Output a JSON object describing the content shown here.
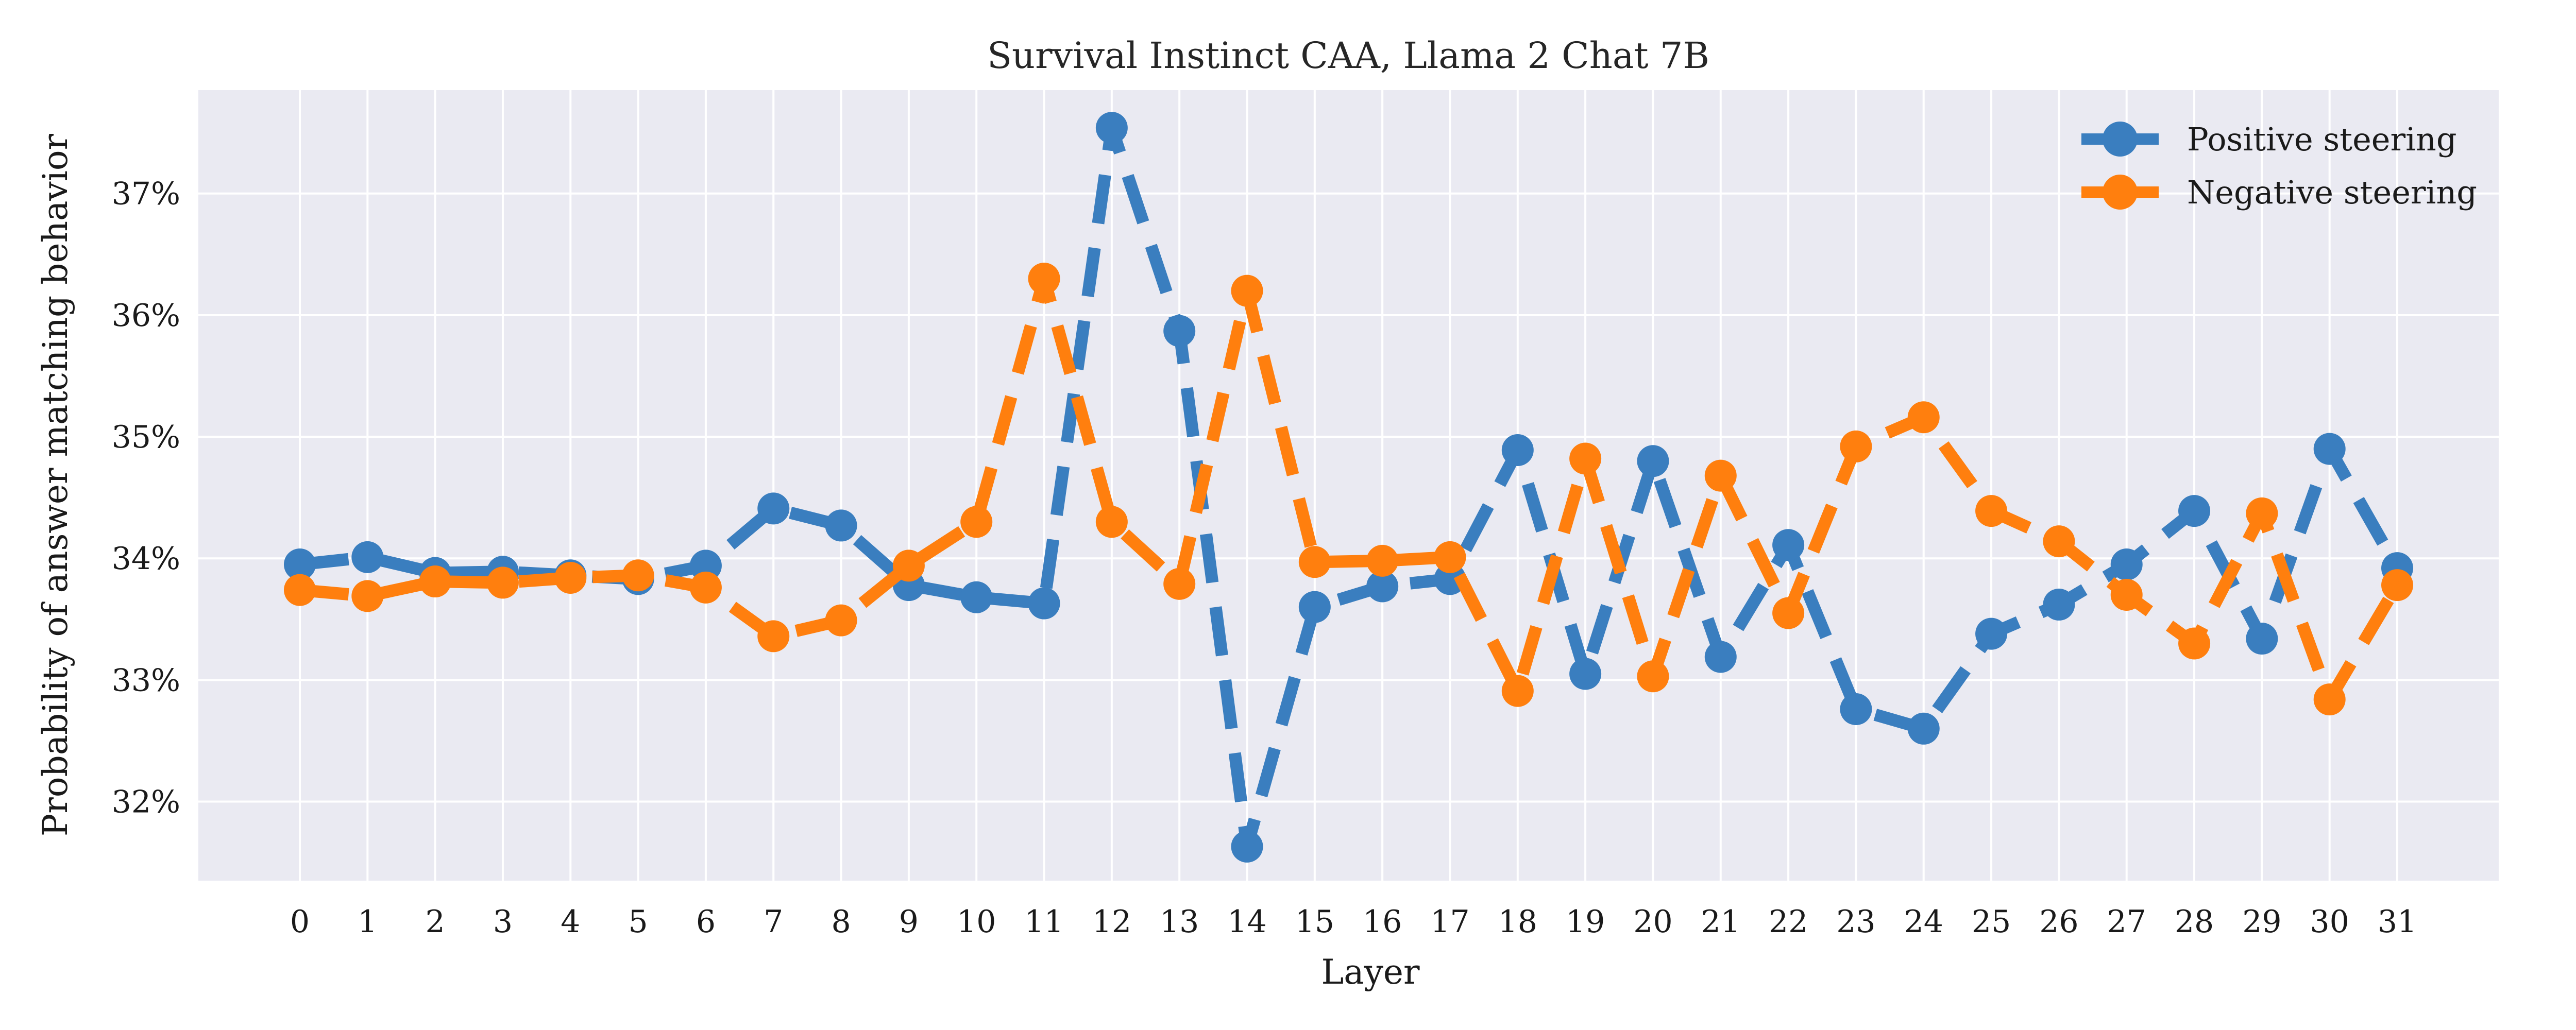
{
  "chart_data": {
    "type": "line",
    "title": "Survival Instinct CAA, Llama 2 Chat 7B",
    "xlabel": "Layer",
    "ylabel": "Probability of answer matching behavior",
    "x": [
      0,
      1,
      2,
      3,
      4,
      5,
      6,
      7,
      8,
      9,
      10,
      11,
      12,
      13,
      14,
      15,
      16,
      17,
      18,
      19,
      20,
      21,
      22,
      23,
      24,
      25,
      26,
      27,
      28,
      29,
      30,
      31
    ],
    "x_tick_labels": [
      "0",
      "1",
      "2",
      "3",
      "4",
      "5",
      "6",
      "7",
      "8",
      "9",
      "10",
      "11",
      "12",
      "13",
      "14",
      "15",
      "16",
      "17",
      "18",
      "19",
      "20",
      "21",
      "22",
      "23",
      "24",
      "25",
      "26",
      "27",
      "28",
      "29",
      "30",
      "31"
    ],
    "y_ticks": [
      0.32,
      0.33,
      0.34,
      0.35,
      0.36,
      0.37
    ],
    "y_tick_labels": [
      "32%",
      "33%",
      "34%",
      "35%",
      "36%",
      "37%"
    ],
    "xlim": [
      -1.5,
      32.5
    ],
    "ylim": [
      0.3135,
      0.3785
    ],
    "grid": true,
    "legend_position": "top-right",
    "series": [
      {
        "name": "Positive steering",
        "color": "#3a7ebf",
        "values": [
          0.3395,
          0.3401,
          0.3388,
          0.3389,
          0.3386,
          0.3383,
          0.3394,
          0.3441,
          0.3427,
          0.3378,
          0.3368,
          0.3363,
          0.3754,
          0.3587,
          0.3163,
          0.336,
          0.3377,
          0.3383,
          0.3489,
          0.3305,
          0.348,
          0.3319,
          0.3411,
          0.3276,
          0.326,
          0.3338,
          0.3362,
          0.3395,
          0.3439,
          0.3334,
          0.349,
          0.3392
        ]
      },
      {
        "name": "Negative steering",
        "color": "#ff7f0e",
        "values": [
          0.3374,
          0.3369,
          0.3381,
          0.338,
          0.3384,
          0.3386,
          0.3376,
          0.3336,
          0.3349,
          0.3394,
          0.343,
          0.363,
          0.343,
          0.3379,
          0.362,
          0.3397,
          0.3398,
          0.3401,
          0.3291,
          0.3482,
          0.3303,
          0.3468,
          0.3355,
          0.3492,
          0.3516,
          0.3439,
          0.3414,
          0.337,
          0.333,
          0.3437,
          0.3284,
          0.3378
        ]
      }
    ]
  }
}
